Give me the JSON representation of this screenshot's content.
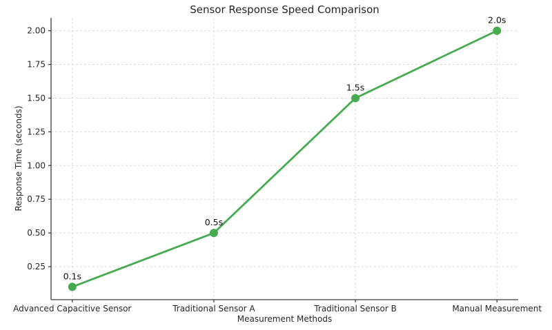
{
  "chart_data": {
    "type": "line",
    "title": "Sensor Response Speed Comparison",
    "xlabel": "Measurement Methods",
    "ylabel": "Response Time (seconds)",
    "categories": [
      "Advanced Capacitive Sensor",
      "Traditional Sensor A",
      "Traditional Sensor B",
      "Manual Measurement"
    ],
    "series": [
      {
        "name": "Response Time",
        "values": [
          0.1,
          0.5,
          1.5,
          2.0
        ],
        "point_labels": [
          "0.1s",
          "0.5s",
          "1.5s",
          "2.0s"
        ]
      }
    ],
    "yticks": [
      0.25,
      0.5,
      0.75,
      1.0,
      1.25,
      1.5,
      1.75,
      2.0
    ],
    "ytick_labels": [
      "0.25",
      "0.50",
      "0.75",
      "1.00",
      "1.25",
      "1.50",
      "1.75",
      "2.00"
    ],
    "ylim": [
      0.005,
      2.095
    ],
    "grid": true,
    "grid_style": "dashed",
    "legend_position": "none",
    "colors": {
      "line": "#46ab4f",
      "marker": "#46ab4f",
      "grid": "#d9d9d9",
      "spine": "#3c3c3c",
      "text": "#262626",
      "background": "#ffffff"
    }
  }
}
